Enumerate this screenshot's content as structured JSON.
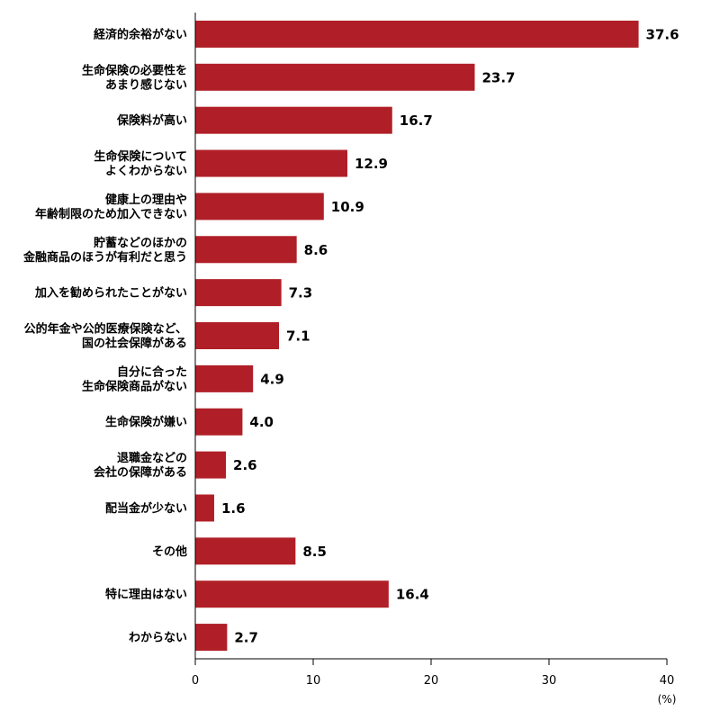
{
  "chart_data": {
    "type": "bar",
    "orientation": "horizontal",
    "categories": [
      [
        "経済的余裕がない"
      ],
      [
        "生命保険の必要性を",
        "あまり感じない"
      ],
      [
        "保険料が高い"
      ],
      [
        "生命保険について",
        "よくわからない"
      ],
      [
        "健康上の理由や",
        "年齢制限のため加入できない"
      ],
      [
        "貯蓄などのほかの",
        "金融商品のほうが有利だと思う"
      ],
      [
        "加入を勧められたことがない"
      ],
      [
        "公的年金や公的医療保険など、",
        "国の社会保障がある"
      ],
      [
        "自分に合った",
        "生命保険商品がない"
      ],
      [
        "生命保険が嫌い"
      ],
      [
        "退職金などの",
        "会社の保障がある"
      ],
      [
        "配当金が少ない"
      ],
      [
        "その他"
      ],
      [
        "特に理由はない"
      ],
      [
        "わからない"
      ]
    ],
    "values": [
      37.6,
      23.7,
      16.7,
      12.9,
      10.9,
      8.6,
      7.3,
      7.1,
      4.9,
      4.0,
      2.6,
      1.6,
      8.5,
      16.4,
      2.7
    ],
    "value_labels": [
      "37.6",
      "23.7",
      "16.7",
      "12.9",
      "10.9",
      "8.6",
      "7.3",
      "7.1",
      "4.9",
      "4.0",
      "2.6",
      "1.6",
      "8.5",
      "16.4",
      "2.7"
    ],
    "xlim": [
      0,
      40
    ],
    "xticks": [
      "0",
      "10",
      "20",
      "30",
      "40"
    ],
    "unit": "(%)",
    "bar_color": "#b01f27",
    "grid": false
  }
}
